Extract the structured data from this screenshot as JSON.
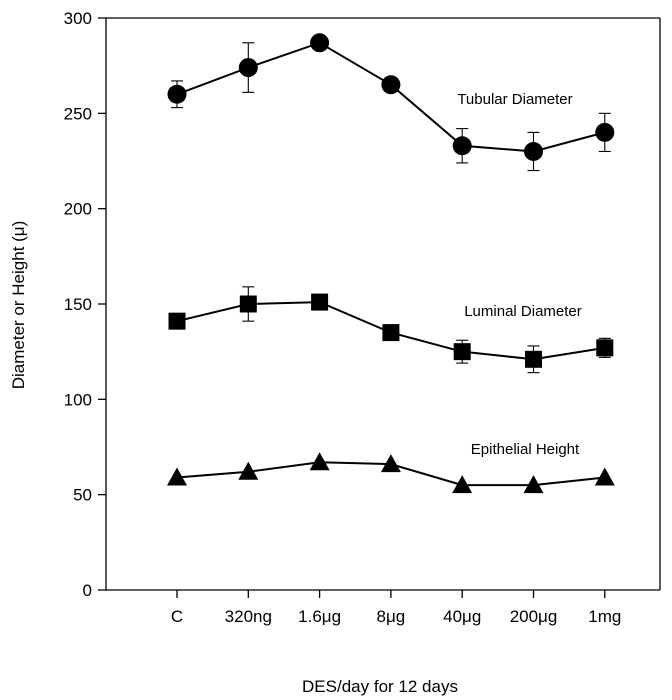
{
  "chart_data": {
    "type": "line",
    "title": "",
    "xlabel": "DES/day for 12 days",
    "ylabel": "Diameter or Height (μ)",
    "categories": [
      "C",
      "320ng",
      "1.6μg",
      "8μg",
      "40μg",
      "200μg",
      "1mg"
    ],
    "ylim": [
      0,
      300
    ],
    "yticks": [
      0,
      50,
      100,
      150,
      200,
      250,
      300
    ],
    "grid": false,
    "series": [
      {
        "name": "Tubular Diameter",
        "marker": "circle",
        "values": [
          260,
          274,
          287,
          265,
          233,
          230,
          240
        ],
        "errors": [
          7,
          13,
          2,
          3,
          9,
          10,
          10
        ]
      },
      {
        "name": "Luminal Diameter",
        "marker": "square",
        "values": [
          141,
          150,
          151,
          135,
          125,
          121,
          127
        ],
        "errors": [
          2,
          9,
          2,
          2,
          6,
          7,
          5
        ]
      },
      {
        "name": "Epithelial Height",
        "marker": "triangle",
        "values": [
          59,
          62,
          67,
          66,
          55,
          55,
          59
        ],
        "errors": [
          0,
          0,
          0,
          0,
          0,
          0,
          0
        ]
      }
    ]
  }
}
